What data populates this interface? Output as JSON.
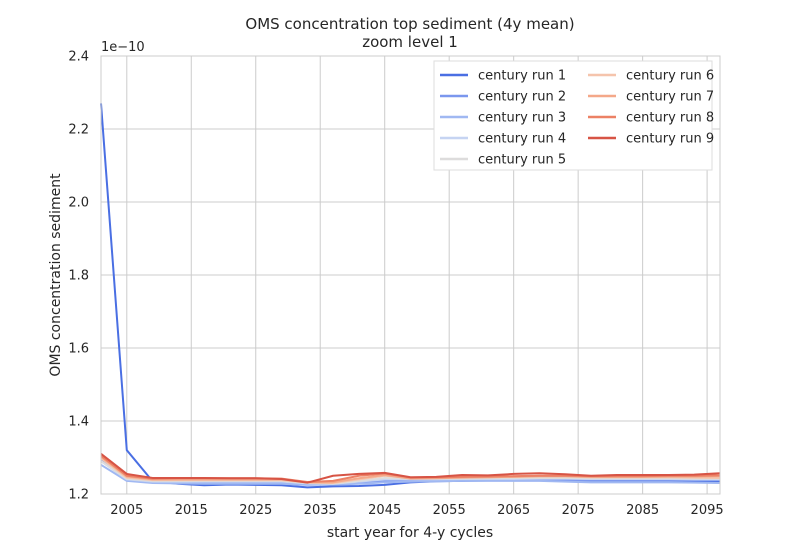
{
  "chart_data": {
    "type": "line",
    "title": "OMS concentration top sediment (4y mean)",
    "subtitle": "zoom level 1",
    "xlabel": "start year for 4-y cycles",
    "ylabel": "OMS concentration sediment",
    "y_scale_label": "1e−10",
    "xlim": [
      2001,
      2097
    ],
    "ylim": [
      1.2,
      2.4
    ],
    "x_ticks": [
      "2005",
      "2015",
      "2025",
      "2035",
      "2045",
      "2055",
      "2065",
      "2075",
      "2085",
      "2095"
    ],
    "y_ticks": [
      "1.2",
      "1.4",
      "1.6",
      "1.8",
      "2.0",
      "2.2",
      "2.4"
    ],
    "grid": true,
    "legend_position": "top-right",
    "x": [
      2001,
      2005,
      2009,
      2013,
      2017,
      2021,
      2025,
      2029,
      2033,
      2037,
      2041,
      2045,
      2049,
      2053,
      2057,
      2061,
      2065,
      2069,
      2073,
      2077,
      2081,
      2085,
      2089,
      2093,
      2097
    ],
    "series": [
      {
        "name": "century run 1",
        "color": "#4a6fe3",
        "values": [
          2.27,
          1.32,
          1.235,
          1.228,
          1.224,
          1.226,
          1.225,
          1.224,
          1.218,
          1.221,
          1.222,
          1.225,
          1.232,
          1.235,
          1.236,
          1.237,
          1.237,
          1.238,
          1.237,
          1.236,
          1.236,
          1.236,
          1.236,
          1.235,
          1.235
        ]
      },
      {
        "name": "century run 2",
        "color": "#7b97ee",
        "values": [
          1.295,
          1.245,
          1.232,
          1.232,
          1.232,
          1.232,
          1.232,
          1.232,
          1.226,
          1.226,
          1.23,
          1.236,
          1.236,
          1.237,
          1.237,
          1.237,
          1.237,
          1.237,
          1.237,
          1.236,
          1.236,
          1.237,
          1.237,
          1.238,
          1.238
        ]
      },
      {
        "name": "century run 3",
        "color": "#a0b8f2",
        "values": [
          1.28,
          1.236,
          1.23,
          1.229,
          1.228,
          1.228,
          1.228,
          1.228,
          1.225,
          1.226,
          1.228,
          1.232,
          1.234,
          1.235,
          1.236,
          1.236,
          1.236,
          1.236,
          1.234,
          1.232,
          1.232,
          1.232,
          1.232,
          1.231,
          1.23
        ]
      },
      {
        "name": "century run 4",
        "color": "#c6d4f2",
        "values": [
          1.29,
          1.24,
          1.234,
          1.234,
          1.234,
          1.234,
          1.234,
          1.234,
          1.229,
          1.228,
          1.234,
          1.24,
          1.24,
          1.24,
          1.241,
          1.241,
          1.241,
          1.242,
          1.242,
          1.241,
          1.241,
          1.241,
          1.241,
          1.24,
          1.24
        ]
      },
      {
        "name": "century run 5",
        "color": "#dddcdc",
        "values": [
          1.29,
          1.242,
          1.236,
          1.236,
          1.236,
          1.236,
          1.236,
          1.236,
          1.23,
          1.228,
          1.236,
          1.244,
          1.242,
          1.242,
          1.242,
          1.243,
          1.244,
          1.244,
          1.244,
          1.243,
          1.243,
          1.243,
          1.243,
          1.242,
          1.242
        ]
      },
      {
        "name": "century run 6",
        "color": "#f5c4ac",
        "values": [
          1.298,
          1.245,
          1.238,
          1.238,
          1.238,
          1.238,
          1.238,
          1.238,
          1.232,
          1.23,
          1.24,
          1.25,
          1.244,
          1.244,
          1.245,
          1.246,
          1.247,
          1.248,
          1.248,
          1.246,
          1.246,
          1.246,
          1.246,
          1.245,
          1.244
        ]
      },
      {
        "name": "century run 7",
        "color": "#f4a889",
        "values": [
          1.302,
          1.248,
          1.24,
          1.24,
          1.24,
          1.24,
          1.24,
          1.24,
          1.232,
          1.232,
          1.243,
          1.252,
          1.242,
          1.243,
          1.245,
          1.246,
          1.247,
          1.249,
          1.249,
          1.247,
          1.247,
          1.247,
          1.248,
          1.248,
          1.249
        ]
      },
      {
        "name": "century run 8",
        "color": "#ec8165",
        "values": [
          1.305,
          1.25,
          1.242,
          1.243,
          1.243,
          1.243,
          1.243,
          1.242,
          1.233,
          1.236,
          1.25,
          1.256,
          1.245,
          1.246,
          1.247,
          1.248,
          1.249,
          1.25,
          1.25,
          1.249,
          1.249,
          1.249,
          1.25,
          1.25,
          1.251
        ]
      },
      {
        "name": "century run 9",
        "color": "#d75445",
        "values": [
          1.31,
          1.255,
          1.244,
          1.244,
          1.244,
          1.243,
          1.243,
          1.241,
          1.231,
          1.25,
          1.255,
          1.258,
          1.246,
          1.247,
          1.252,
          1.251,
          1.255,
          1.257,
          1.254,
          1.25,
          1.252,
          1.252,
          1.252,
          1.253,
          1.257
        ]
      }
    ]
  }
}
